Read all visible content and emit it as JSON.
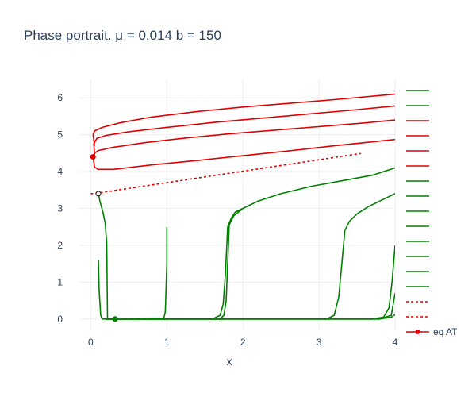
{
  "chart_data": {
    "type": "line",
    "title": "Phase portrait. μ = 0.014 b = 150",
    "xlabel": "x",
    "ylabel": "",
    "xlim": [
      -0.15,
      4.0
    ],
    "ylim": [
      -0.35,
      6.5
    ],
    "xticks": [
      0,
      1,
      2,
      3,
      4
    ],
    "yticks": [
      0,
      1,
      2,
      3,
      4,
      5,
      6
    ],
    "grid": true,
    "colors": {
      "green": "#008000",
      "red": "#e00000",
      "text": "#2a3f5f",
      "grid": "#eeeeee"
    },
    "series": [
      {
        "color": "#e00000",
        "dash": false,
        "x": [
          0.05,
          0.03,
          0.05,
          0.15,
          0.4,
          0.8,
          1.4,
          2.0,
          2.6,
          3.2,
          4.0
        ],
        "y": [
          4.7,
          5.0,
          5.1,
          5.2,
          5.33,
          5.48,
          5.63,
          5.75,
          5.85,
          5.95,
          6.1
        ]
      },
      {
        "color": "#e00000",
        "dash": false,
        "x": [
          0.05,
          0.04,
          0.08,
          0.2,
          0.5,
          1.0,
          1.6,
          2.2,
          2.8,
          3.4,
          4.0
        ],
        "y": [
          4.45,
          4.75,
          4.9,
          4.98,
          5.08,
          5.2,
          5.33,
          5.44,
          5.55,
          5.66,
          5.78
        ]
      },
      {
        "color": "#e00000",
        "dash": false,
        "x": [
          0.05,
          0.1,
          0.3,
          0.7,
          1.2,
          1.8,
          2.4,
          3.0,
          3.6,
          4.0
        ],
        "y": [
          4.5,
          4.57,
          4.66,
          4.78,
          4.9,
          5.02,
          5.12,
          5.22,
          5.32,
          5.4
        ]
      },
      {
        "color": "#e00000",
        "dash": false,
        "x": [
          0.03,
          0.05,
          0.1,
          0.3,
          0.8,
          1.4,
          2.0,
          2.6,
          3.2,
          4.0
        ],
        "y": [
          4.4,
          4.12,
          4.06,
          4.06,
          4.18,
          4.3,
          4.43,
          4.56,
          4.7,
          4.87
        ]
      },
      {
        "color": "#e00000",
        "dash": true,
        "x": [
          0.0,
          0.1,
          3.55
        ],
        "y": [
          3.4,
          3.42,
          4.49
        ]
      },
      {
        "color": "#008000",
        "dash": false,
        "x": [
          0.1,
          0.12,
          0.16,
          0.19,
          0.2,
          0.21,
          0.22
        ],
        "y": [
          3.4,
          3.2,
          2.9,
          2.6,
          2.3,
          2.1,
          0.0
        ]
      },
      {
        "color": "#008000",
        "dash": false,
        "x": [
          0.1,
          0.11,
          0.13,
          0.15,
          0.5,
          1.0
        ],
        "y": [
          1.6,
          0.8,
          0.1,
          0.0,
          0.0,
          0.0
        ]
      },
      {
        "color": "#008000",
        "dash": false,
        "x": [
          0.2,
          0.96,
          0.98,
          0.99,
          1.0,
          1.0
        ],
        "y": [
          0.0,
          0.02,
          0.2,
          0.8,
          1.5,
          2.5
        ]
      },
      {
        "color": "#008000",
        "dash": false,
        "x": [
          0.2,
          1.6,
          1.7,
          1.74,
          1.77,
          1.8,
          1.85,
          1.9,
          2.0
        ],
        "y": [
          0.0,
          0.0,
          0.1,
          0.4,
          1.2,
          2.5,
          2.75,
          2.9,
          3.0
        ]
      },
      {
        "color": "#008000",
        "dash": false,
        "x": [
          0.2,
          1.7,
          1.75,
          1.78,
          1.8,
          1.82,
          1.88,
          2.0,
          2.2,
          2.5,
          2.9,
          3.3,
          3.7,
          4.0
        ],
        "y": [
          0.0,
          0.0,
          0.1,
          0.5,
          1.5,
          2.55,
          2.8,
          3.0,
          3.2,
          3.4,
          3.6,
          3.75,
          3.9,
          4.1
        ]
      },
      {
        "color": "#008000",
        "dash": false,
        "x": [
          0.2,
          3.1,
          3.2,
          3.26,
          3.3,
          3.34,
          3.4,
          3.5,
          3.65,
          3.8,
          4.0
        ],
        "y": [
          0.0,
          0.0,
          0.1,
          0.6,
          1.5,
          2.4,
          2.65,
          2.85,
          3.05,
          3.2,
          3.4
        ]
      },
      {
        "color": "#008000",
        "dash": false,
        "x": [
          0.2,
          3.7,
          3.85,
          3.92,
          3.96,
          4.0
        ],
        "y": [
          0.0,
          0.0,
          0.05,
          0.3,
          1.0,
          2.0
        ]
      },
      {
        "color": "#008000",
        "dash": false,
        "x": [
          0.2,
          3.8,
          3.95,
          4.0
        ],
        "y": [
          0.0,
          0.0,
          0.1,
          0.7
        ]
      },
      {
        "color": "#008000",
        "dash": false,
        "x": [
          0.2,
          3.8,
          3.95,
          4.0
        ],
        "y": [
          0.0,
          0.0,
          0.05,
          0.12
        ]
      }
    ],
    "points": [
      {
        "x": 0.03,
        "y": 4.4,
        "fill": "#e00000",
        "stroke": "#e00000"
      },
      {
        "x": 0.1,
        "y": 3.4,
        "fill": "#ffffff",
        "stroke": "#000000"
      },
      {
        "x": 0.32,
        "y": 0.0,
        "fill": "#008000",
        "stroke": "#008000"
      }
    ],
    "legend": {
      "placement": "right",
      "entries": [
        {
          "name": "",
          "color": "#008000",
          "dash": false
        },
        {
          "name": "",
          "color": "#008000",
          "dash": false
        },
        {
          "name": "",
          "color": "#e00000",
          "dash": false
        },
        {
          "name": "",
          "color": "#e00000",
          "dash": false
        },
        {
          "name": "",
          "color": "#e00000",
          "dash": false
        },
        {
          "name": "",
          "color": "#e00000",
          "dash": false
        },
        {
          "name": "",
          "color": "#008000",
          "dash": false
        },
        {
          "name": "",
          "color": "#008000",
          "dash": false
        },
        {
          "name": "",
          "color": "#008000",
          "dash": false
        },
        {
          "name": "",
          "color": "#008000",
          "dash": false
        },
        {
          "name": "",
          "color": "#008000",
          "dash": false
        },
        {
          "name": "",
          "color": "#008000",
          "dash": false
        },
        {
          "name": "",
          "color": "#008000",
          "dash": false
        },
        {
          "name": "",
          "color": "#008000",
          "dash": false
        },
        {
          "name": "",
          "color": "#e00000",
          "dash": true
        },
        {
          "name": "",
          "color": "#e00000",
          "dash": true
        },
        {
          "name": "eq AT",
          "color": "#e00000",
          "dash": false,
          "marker": true
        }
      ]
    }
  }
}
